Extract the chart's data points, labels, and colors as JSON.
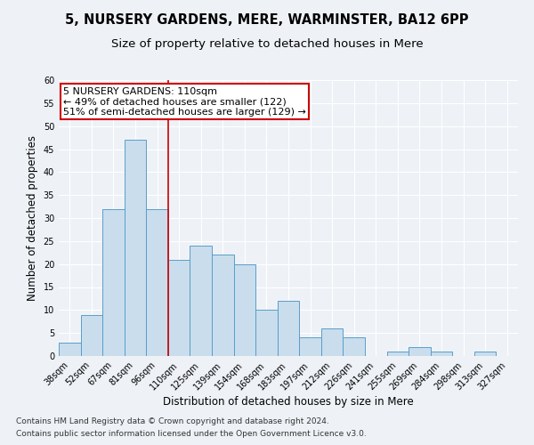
{
  "title1": "5, NURSERY GARDENS, MERE, WARMINSTER, BA12 6PP",
  "title2": "Size of property relative to detached houses in Mere",
  "xlabel": "Distribution of detached houses by size in Mere",
  "ylabel": "Number of detached properties",
  "categories": [
    "38sqm",
    "52sqm",
    "67sqm",
    "81sqm",
    "96sqm",
    "110sqm",
    "125sqm",
    "139sqm",
    "154sqm",
    "168sqm",
    "183sqm",
    "197sqm",
    "212sqm",
    "226sqm",
    "241sqm",
    "255sqm",
    "269sqm",
    "284sqm",
    "298sqm",
    "313sqm",
    "327sqm"
  ],
  "values": [
    3,
    9,
    32,
    47,
    32,
    21,
    24,
    22,
    20,
    10,
    12,
    4,
    6,
    4,
    0,
    1,
    2,
    1,
    0,
    1,
    0
  ],
  "bar_color": "#c9dded",
  "bar_edge_color": "#5a9ec8",
  "vline_color": "#cc0000",
  "annotation_line1": "5 NURSERY GARDENS: 110sqm",
  "annotation_line2": "← 49% of detached houses are smaller (122)",
  "annotation_line3": "51% of semi-detached houses are larger (129) →",
  "annotation_box_color": "white",
  "annotation_box_edge_color": "#cc0000",
  "ylim": [
    0,
    60
  ],
  "yticks": [
    0,
    5,
    10,
    15,
    20,
    25,
    30,
    35,
    40,
    45,
    50,
    55,
    60
  ],
  "footer1": "Contains HM Land Registry data © Crown copyright and database right 2024.",
  "footer2": "Contains public sector information licensed under the Open Government Licence v3.0.",
  "bg_color": "#eef2f7",
  "title1_fontsize": 10.5,
  "title2_fontsize": 9.5,
  "axis_label_fontsize": 8.5,
  "tick_fontsize": 7,
  "footer_fontsize": 6.5,
  "annotation_fontsize": 8
}
